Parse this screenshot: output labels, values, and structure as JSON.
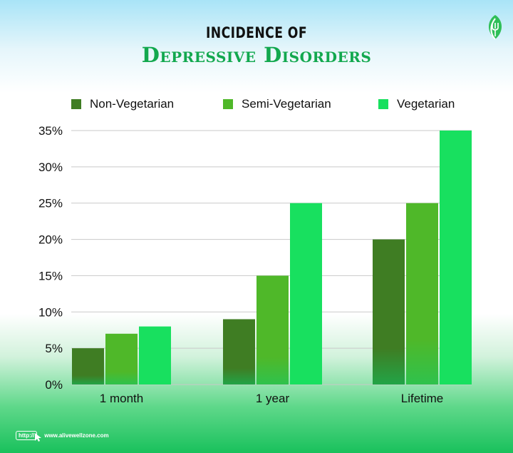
{
  "header": {
    "title_top": "INCIDENCE OF",
    "title_main": "Depressive Disorders"
  },
  "logo": {
    "icon": "leaf-fork-icon"
  },
  "footer": {
    "http_label": "http://",
    "url": "www.alivewellzone.com"
  },
  "colors": {
    "non_vegetarian": "#3f7d23",
    "semi_vegetarian": "#4fb829",
    "vegetarian": "#18e05f",
    "title_accent": "#12a84e"
  },
  "chart_data": {
    "type": "bar",
    "categories": [
      "1 month",
      "1 year",
      "Lifetime"
    ],
    "series": [
      {
        "name": "Non-Vegetarian",
        "values": [
          5,
          9,
          20
        ]
      },
      {
        "name": "Semi-Vegetarian",
        "values": [
          7,
          15,
          25
        ]
      },
      {
        "name": "Vegetarian",
        "values": [
          8,
          25,
          35
        ]
      }
    ],
    "y_ticks": [
      "0%",
      "5%",
      "10%",
      "15%",
      "20%",
      "25%",
      "30%",
      "35%"
    ],
    "ylim": [
      0,
      35
    ],
    "grid": true,
    "legend_position": "top"
  }
}
